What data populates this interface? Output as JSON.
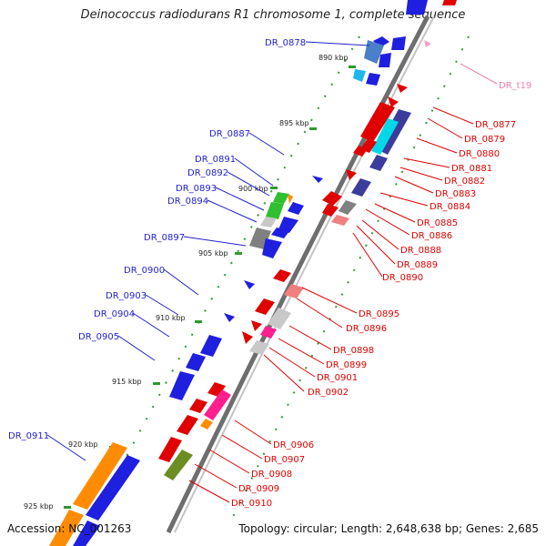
{
  "title": "Deinococcus radiodurans R1 chromosome 1, complete sequence",
  "footer": {
    "accession": "Accession: NC_001263",
    "summary": "Topology: circular; Length: 2,648,638 bp; Genes: 2,685"
  },
  "colors": {
    "left_label": "#1f1fd0",
    "right_label": "#e00000",
    "trna_label": "#f07ab0",
    "backbone": "#7a7a7a",
    "tick": "#2e9a2e"
  },
  "ticks": [
    "890 kbp",
    "895 kbp",
    "900 kbp",
    "905 kbp",
    "910 kbp",
    "915 kbp",
    "920 kbp",
    "925 kbp"
  ],
  "left_labels": [
    "DR_0878",
    "DR_0887",
    "DR_0891",
    "DR_0892",
    "DR_0893",
    "DR_0894",
    "DR_0897",
    "DR_0900",
    "DR_0903",
    "DR_0904",
    "DR_0905",
    "DR_0911"
  ],
  "right_labels": [
    "DR_t19",
    "DR_0877",
    "DR_0879",
    "DR_0880",
    "DR_0881",
    "DR_0882",
    "DR_0883",
    "DR_0884",
    "DR_0885",
    "DR_0886",
    "DR_0888",
    "DR_0889",
    "DR_0890",
    "DR_0895",
    "DR_0896",
    "DR_0898",
    "DR_0899",
    "DR_0901",
    "DR_0902",
    "DR_0906",
    "DR_0907",
    "DR_0908",
    "DR_0909",
    "DR_0910"
  ]
}
